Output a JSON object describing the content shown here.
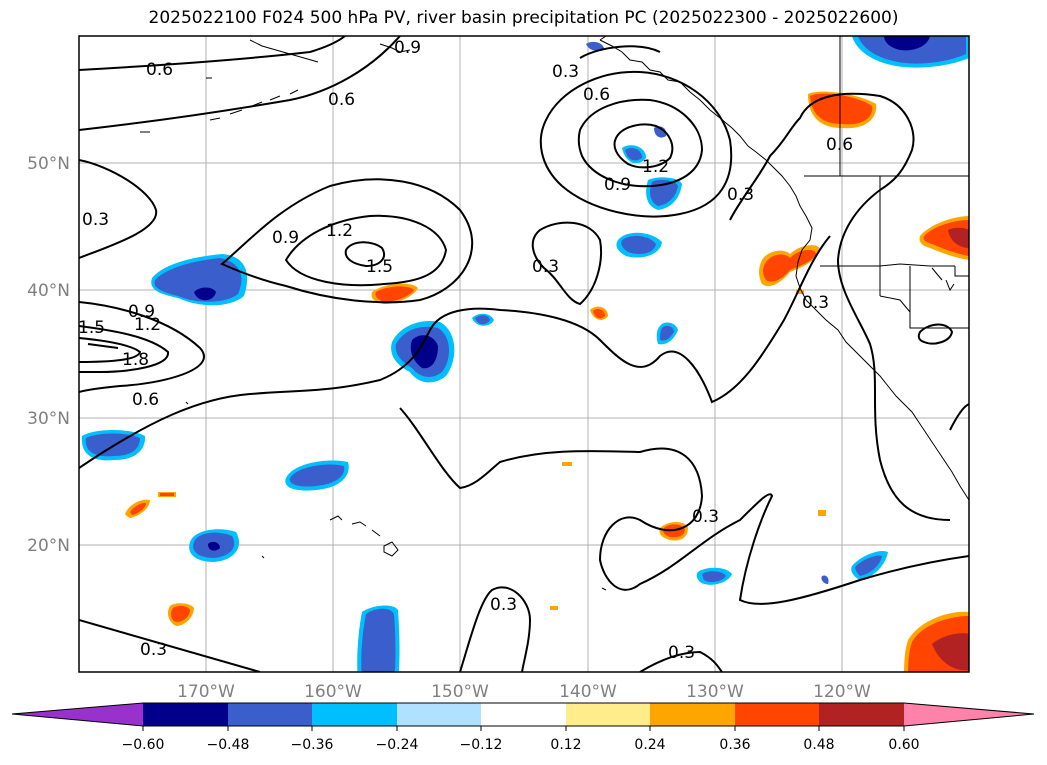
{
  "title": "2025022100 F024 500 hPa PV, river basin precipitation PC (2025022300 - 2025022600)",
  "colors": {
    "neg_060": "#9932cc",
    "neg_048": "#00008b",
    "neg_036": "#3a5fcd",
    "neg_024": "#00bfff",
    "neg_012": "#b0e2ff",
    "zero": "#ffffff",
    "pos_012": "#ffec8b",
    "pos_024": "#ffa500",
    "pos_036": "#ff4500",
    "pos_048": "#b22222",
    "pos_060": "#ff82ab"
  },
  "lat_labels": [
    "50°N",
    "40°N",
    "30°N",
    "20°N"
  ],
  "lon_labels": [
    "170°W",
    "160°W",
    "150°W",
    "140°W",
    "130°W",
    "120°W"
  ],
  "contour_labels": [
    "0.6",
    "0.9",
    "0.6",
    "0.3",
    "0.6",
    "1.2",
    "0.9",
    "0.3",
    "0.6",
    "0.3",
    "0.9",
    "1.2",
    "1.5",
    "0.3",
    "0.9",
    "1.2",
    "1.5",
    "1.8",
    "0.6",
    "0.3",
    "0.3",
    "0.3",
    "0.3",
    "0.3"
  ],
  "colorbar": {
    "ticks": [
      "−0.60",
      "−0.48",
      "−0.36",
      "−0.24",
      "−0.12",
      "0.12",
      "0.24",
      "0.36",
      "0.48",
      "0.60"
    ]
  }
}
